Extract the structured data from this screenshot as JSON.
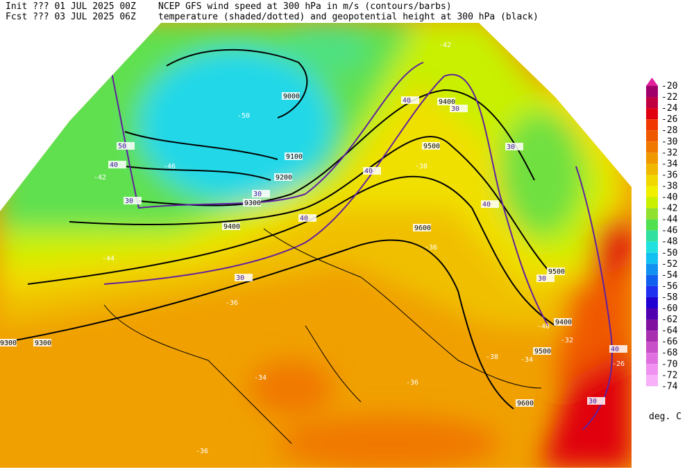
{
  "header": {
    "line1_left": "Init  ??? 01 JUL 2025 00Z",
    "line1_right": "NCEP GFS wind speed at 300 hPa in m/s (contours/barbs)",
    "line2_left": "Fcst ??? 03 JUL 2025 06Z",
    "line2_right": "temperature (shaded/dotted) and geopotential height at 300 hPa (black)"
  },
  "colorbar": {
    "unit": "deg. C",
    "levels": [
      -20,
      -22,
      -24,
      -26,
      -28,
      -30,
      -32,
      -34,
      -36,
      -38,
      -40,
      -42,
      -44,
      -46,
      -48,
      -50,
      -52,
      -54,
      -56,
      -58,
      -60,
      -62,
      -64,
      -66,
      -68,
      -70,
      -72,
      -74
    ],
    "colors": [
      "#e0209a",
      "#a0006a",
      "#c00040",
      "#e00010",
      "#f03800",
      "#f05800",
      "#f07800",
      "#f09800",
      "#f0b800",
      "#f0d800",
      "#f0f000",
      "#c8f000",
      "#90e030",
      "#50e050",
      "#30e0a0",
      "#20e0e0",
      "#10c0f0",
      "#1090f0",
      "#1060f0",
      "#2030f0",
      "#2000d0",
      "#5000b0",
      "#8010a0",
      "#a830b0",
      "#c850c8",
      "#e070e0",
      "#f090f0",
      "#f8b0f8"
    ]
  },
  "map_labels": {
    "heights": [
      "9000",
      "9100",
      "9200",
      "9300",
      "9400",
      "9500",
      "9600",
      "9500",
      "9400",
      "9300",
      "9500",
      "9600",
      "9300",
      "9400"
    ],
    "winds": [
      "30",
      "40",
      "50",
      "30",
      "40",
      "30",
      "40",
      "30",
      "40",
      "30",
      "40",
      "30",
      "40",
      "30"
    ],
    "temps": [
      "-50",
      "-46",
      "-42",
      "-44",
      "-38",
      "-36",
      "-36",
      "-34",
      "-38",
      "-36",
      "-34",
      "-32",
      "-40",
      "-26",
      "-36",
      "-42"
    ]
  }
}
